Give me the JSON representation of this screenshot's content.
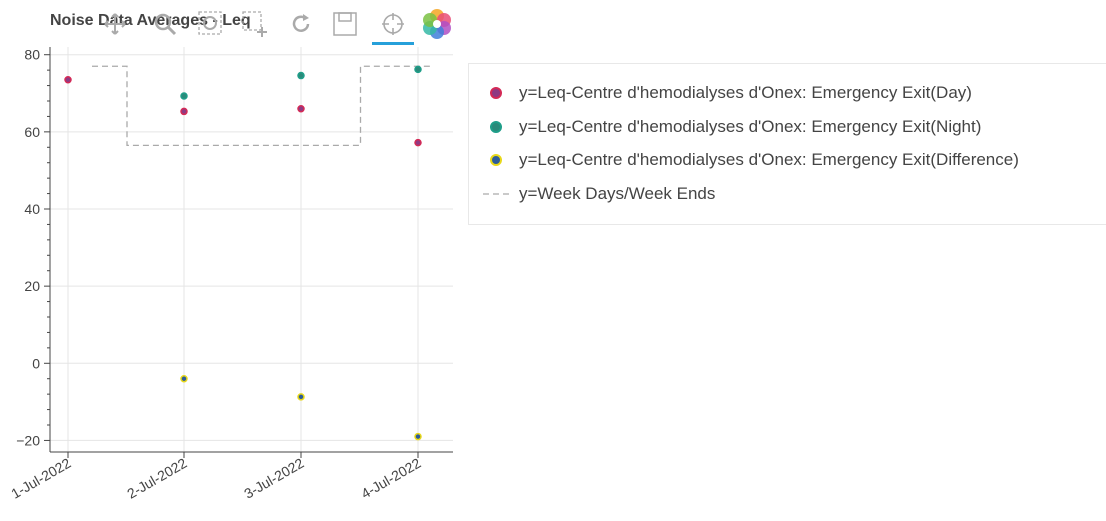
{
  "chart_data": {
    "type": "scatter",
    "title": "Noise Data Averages - Leq",
    "x_categories": [
      "1-Jul-2022",
      "2-Jul-2022",
      "3-Jul-2022",
      "4-Jul-2022"
    ],
    "ylim": [
      -23,
      82
    ],
    "y_ticks": [
      80,
      60,
      40,
      20,
      0,
      -20
    ],
    "y_tick_labels": [
      "80",
      "60",
      "40",
      "20",
      "0",
      "−20"
    ],
    "grid": true,
    "legend_position": "right",
    "series": [
      {
        "name": "y=Leq-Centre d'hemodialyses d'Onex: Emergency Exit(Day)",
        "kind": "scatter",
        "fill": "#8e3a83",
        "stroke": "#d42a56",
        "points": [
          {
            "x": "1-Jul-2022",
            "y": 73.5
          },
          {
            "x": "2-Jul-2022",
            "y": 65.3
          },
          {
            "x": "3-Jul-2022",
            "y": 66.0
          },
          {
            "x": "4-Jul-2022",
            "y": 57.2
          }
        ]
      },
      {
        "name": "y=Leq-Centre d'hemodialyses d'Onex: Emergency Exit(Night)",
        "kind": "scatter",
        "fill": "#2a8a7a",
        "stroke": "#1f9e89",
        "points": [
          {
            "x": "2-Jul-2022",
            "y": 69.3
          },
          {
            "x": "3-Jul-2022",
            "y": 74.6
          },
          {
            "x": "4-Jul-2022",
            "y": 76.2
          }
        ]
      },
      {
        "name": "y=Leq-Centre d'hemodialyses d'Onex: Emergency Exit(Difference)",
        "kind": "scatter",
        "fill": "#2c5c9a",
        "stroke": "#e8d81a",
        "points": [
          {
            "x": "2-Jul-2022",
            "y": -4.0
          },
          {
            "x": "3-Jul-2022",
            "y": -8.7
          },
          {
            "x": "4-Jul-2022",
            "y": -19.0
          }
        ]
      },
      {
        "name": "y=Week Days/Week Ends",
        "kind": "step-line",
        "stroke": "#aaaaaa",
        "dash": true,
        "points": [
          {
            "x": "1-Jul-2022",
            "y": 77
          },
          {
            "x": "2-Jul-2022",
            "y": 56.5
          },
          {
            "x": "3-Jul-2022",
            "y": 56.5
          },
          {
            "x": "4-Jul-2022",
            "y": 77
          }
        ]
      }
    ]
  },
  "toolbar": {
    "tools": [
      {
        "name": "pan-icon"
      },
      {
        "name": "wheel-zoom-icon"
      },
      {
        "name": "box-zoom-icon"
      },
      {
        "name": "reset-icon"
      },
      {
        "name": "save-icon"
      },
      {
        "name": "hover-icon"
      },
      {
        "name": "bokeh-logo-icon"
      }
    ]
  }
}
